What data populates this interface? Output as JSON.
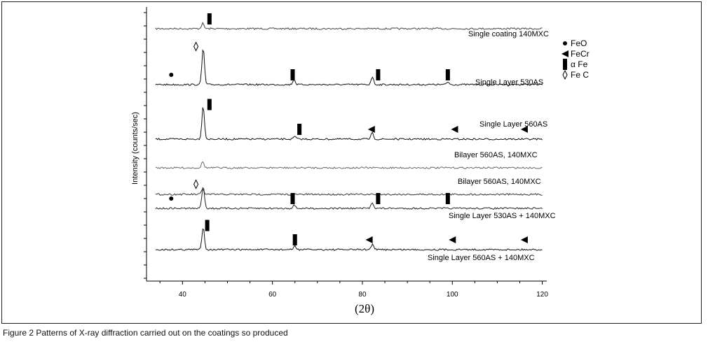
{
  "caption": "Figure 2 Patterns of X-ray diffraction carried out on the coatings so produced",
  "chart_data": {
    "type": "line",
    "xlabel": "(2θ)",
    "ylabel": "Intensity (counts/sec)",
    "xlim": [
      32,
      121
    ],
    "x_ticks": [
      40,
      60,
      80,
      100,
      120
    ],
    "grid": false,
    "legend": [
      {
        "name": "FeO",
        "marker": "●"
      },
      {
        "name": "FeCr",
        "marker": "◄"
      },
      {
        "name": "α Fe",
        "marker": "▌"
      },
      {
        "name": "Fe C",
        "marker": "◊"
      }
    ],
    "series": [
      {
        "name": "Single coating 140MXC",
        "color": "#444444",
        "peaks": [
          [
            44.5,
            0.3
          ]
        ],
        "markers": [
          {
            "type": "α Fe",
            "x": 46
          }
        ]
      },
      {
        "name": "Single Layer 530AS",
        "color": "#111111",
        "peaks": [
          [
            44.6,
            2.1
          ],
          [
            64.8,
            0.3
          ],
          [
            82.2,
            0.45
          ],
          [
            99,
            0.15
          ]
        ],
        "markers": [
          {
            "type": "FeO",
            "x": 37.5
          },
          {
            "type": "Fe C",
            "x": 43
          },
          {
            "type": "α Fe",
            "x": 64.5
          },
          {
            "type": "α Fe",
            "x": 83.5
          },
          {
            "type": "α Fe",
            "x": 99
          }
        ]
      },
      {
        "name": "Single Layer 560AS",
        "color": "#111111",
        "peaks": [
          [
            44.6,
            1.9
          ],
          [
            65,
            0.15
          ],
          [
            82.2,
            0.35
          ]
        ],
        "markers": [
          {
            "type": "α Fe",
            "x": 46
          },
          {
            "type": "α Fe",
            "x": 66
          },
          {
            "type": "FeCr",
            "x": 82
          },
          {
            "type": "FeCr",
            "x": 100.5
          },
          {
            "type": "FeCr",
            "x": 116
          }
        ]
      },
      {
        "name": "Bilayer 560AS, 140MXC",
        "color": "#666666",
        "peaks": [
          [
            44.5,
            0.35
          ]
        ],
        "markers": []
      },
      {
        "name": "Bilayer 560AS, 140MXC",
        "color": "#333333",
        "peaks": [
          [
            44.5,
            0.3
          ]
        ],
        "markers": []
      },
      {
        "name": "Single Layer 530AS + 140MXC",
        "color": "#222222",
        "peaks": [
          [
            44.6,
            1.3
          ],
          [
            64.8,
            0.2
          ],
          [
            82.2,
            0.35
          ]
        ],
        "markers": [
          {
            "type": "FeO",
            "x": 37.5
          },
          {
            "type": "Fe C",
            "x": 43
          },
          {
            "type": "α Fe",
            "x": 64.5
          },
          {
            "type": "α Fe",
            "x": 83.5
          },
          {
            "type": "α Fe",
            "x": 99
          }
        ]
      },
      {
        "name": "Single Layer 560AS + 140MXC",
        "color": "#111111",
        "peaks": [
          [
            44.6,
            1.3
          ],
          [
            65,
            0.2
          ],
          [
            82.2,
            0.3
          ]
        ],
        "markers": [
          {
            "type": "α Fe",
            "x": 45.5
          },
          {
            "type": "α Fe",
            "x": 65
          },
          {
            "type": "FeCr",
            "x": 81.5
          },
          {
            "type": "FeCr",
            "x": 100
          },
          {
            "type": "FeCr",
            "x": 116
          }
        ]
      }
    ]
  }
}
